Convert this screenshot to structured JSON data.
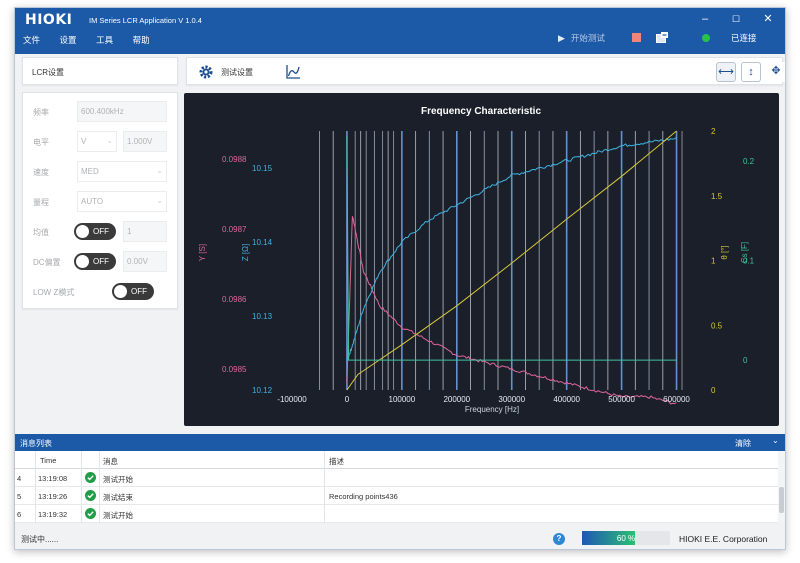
{
  "window": {
    "logo": "HIOKI",
    "title": "IM Series LCR Application   V 1.0.4",
    "minimize_glyph": "–",
    "maximize_glyph": "☐",
    "close_glyph": "✕"
  },
  "menu": [
    "文件",
    "设置",
    "工具",
    "帮助"
  ],
  "top_actions": {
    "start_label": "开始测试",
    "start_icon": "play-icon",
    "stop_icon": "stop-icon",
    "export_icon": "export-icon",
    "connection_label": "已连接",
    "connection_color": "#27c24c"
  },
  "lcr_panel": {
    "title": "LCR设置",
    "rows": [
      {
        "label": "频率",
        "value": "600.400kHz"
      },
      {
        "label": "电平",
        "mode": "V",
        "value": "1.000V"
      },
      {
        "label": "速度",
        "value": "MED"
      },
      {
        "label": "量程",
        "value": "AUTO"
      },
      {
        "label": "均值",
        "toggle": "OFF",
        "value": "1"
      },
      {
        "label": "DC偏置",
        "toggle": "OFF",
        "value": "0.00V"
      },
      {
        "label": "LOW Z模式",
        "toggle": "OFF"
      }
    ]
  },
  "toolbar": {
    "settings_label": "测试设置",
    "buttons": [
      "fit-horizontal-icon",
      "fit-vertical-icon",
      "fit-all-icon"
    ]
  },
  "chart_data": {
    "type": "line",
    "title": "Frequency Characteristic",
    "xlabel": "Frequency [Hz]",
    "x_ticks": [
      "-100000",
      "0",
      "100000",
      "200000",
      "300000",
      "400000",
      "500000",
      "600000"
    ],
    "xlim": [
      -100000,
      650000
    ],
    "axes": [
      {
        "name": "Y [S]",
        "color": "#e0659b",
        "ticks": [
          "0.0988",
          "0.0987",
          "0.0986",
          "0.0985"
        ],
        "range": [
          0.09847,
          0.09884
        ]
      },
      {
        "name": "Z [Ω]",
        "color": "#3fb3e0",
        "ticks": [
          "10.15",
          "10.14",
          "10.13",
          "10.12"
        ],
        "range": [
          10.12,
          10.155
        ]
      },
      {
        "name": "θ [°]",
        "color": "#d9c73a",
        "ticks": [
          "2",
          "1.5",
          "1",
          "0.5",
          "0"
        ],
        "range": [
          0,
          2
        ]
      },
      {
        "name": "Cs [F]",
        "color": "#3fc49b",
        "ticks": [
          "0.2",
          "0.1",
          "0"
        ],
        "range": [
          -0.03,
          0.23
        ]
      }
    ],
    "series": [
      {
        "name": "Y [S]",
        "color": "#e0659b",
        "x": [
          0,
          10000,
          30000,
          60000,
          100000,
          150000,
          200000,
          250000,
          300000,
          350000,
          400000,
          450000,
          500000,
          550000,
          600000
        ],
        "values": [
          0.09848,
          0.09872,
          0.09864,
          0.09859,
          0.09856,
          0.09854,
          0.09852,
          0.09851,
          0.0985,
          0.09849,
          0.09848,
          0.09847,
          0.09846,
          0.09846,
          0.09845
        ]
      },
      {
        "name": "Z [Ω]",
        "color": "#3fb3e0",
        "x": [
          0,
          10000,
          30000,
          60000,
          100000,
          150000,
          200000,
          250000,
          300000,
          350000,
          400000,
          450000,
          500000,
          550000,
          600000
        ],
        "values": [
          10.124,
          10.126,
          10.131,
          10.136,
          10.14,
          10.143,
          10.145,
          10.147,
          10.149,
          10.15,
          10.151,
          10.152,
          10.153,
          10.1535,
          10.154
        ]
      },
      {
        "name": "θ [°]",
        "color": "#d9c73a",
        "x": [
          0,
          20000,
          100000,
          200000,
          300000,
          400000,
          500000,
          600000
        ],
        "values": [
          0,
          0.12,
          0.35,
          0.65,
          0.98,
          1.32,
          1.65,
          2.0
        ]
      },
      {
        "name": "Cs [F]",
        "color": "#3fc49b",
        "x": [
          0,
          3000,
          600000
        ],
        "values": [
          0.225,
          0.0,
          0.0
        ]
      }
    ]
  },
  "messages": {
    "title": "消息列表",
    "clear_label": "清除",
    "columns": [
      "",
      "Time",
      "",
      "消息",
      "描述"
    ],
    "rows": [
      {
        "index": "4",
        "time": "13:19:08",
        "message": "测试开始",
        "description": ""
      },
      {
        "index": "5",
        "time": "13:19:26",
        "message": "测试结束",
        "description": "Recording points436"
      },
      {
        "index": "6",
        "time": "13:19:32",
        "message": "测试开始",
        "description": ""
      }
    ]
  },
  "status": {
    "text": "测试中......",
    "progress_percent": 60,
    "progress_label": "60 %",
    "company": "HIOKI E.E. Corporation"
  }
}
